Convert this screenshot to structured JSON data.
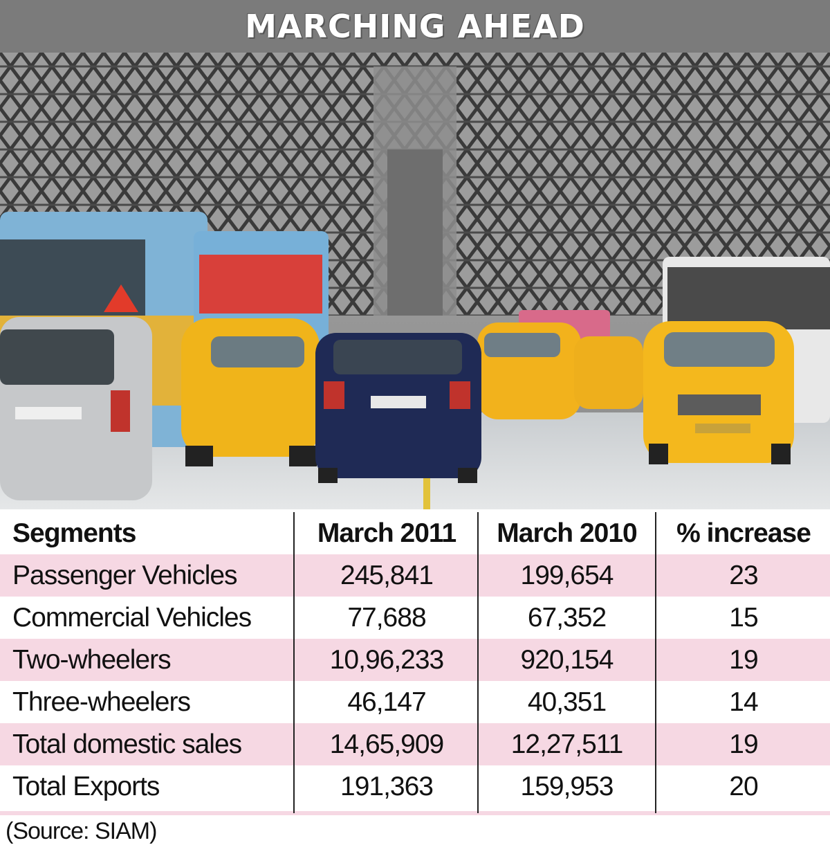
{
  "title": "MARCHING AHEAD",
  "source": "(Source: SIAM)",
  "chart_data": {
    "type": "table",
    "title": "MARCHING AHEAD",
    "columns": [
      "Segments",
      "March 2011",
      "March 2010",
      "% increase"
    ],
    "rows": [
      {
        "segment": "Passenger Vehicles",
        "march_2011": "245,841",
        "march_2010": "199,654",
        "increase": "23"
      },
      {
        "segment": "Commercial Vehicles",
        "march_2011": "77,688",
        "march_2010": "67,352",
        "increase": "15"
      },
      {
        "segment": "Two-wheelers",
        "march_2011": "10,96,233",
        "march_2010": "920,154",
        "increase": "19"
      },
      {
        "segment": "Three-wheelers",
        "march_2011": "46,147",
        "march_2010": "40,351",
        "increase": "14"
      },
      {
        "segment": "Total domestic sales",
        "march_2011": "14,65,909",
        "march_2010": "12,27,511",
        "increase": "19"
      },
      {
        "segment": "Total Exports",
        "march_2011": "191,363",
        "march_2010": "159,953",
        "increase": "20"
      }
    ],
    "source": "(Source: SIAM)"
  }
}
